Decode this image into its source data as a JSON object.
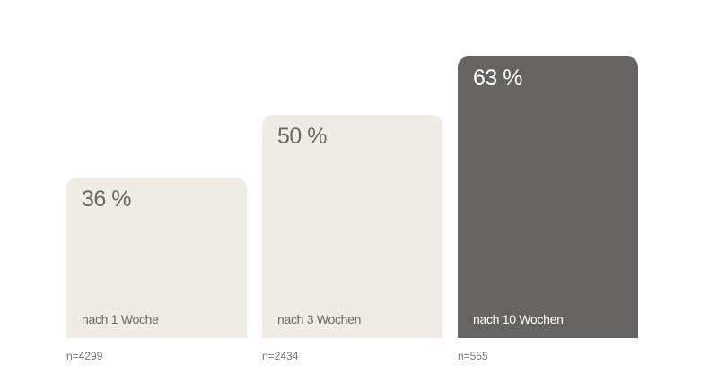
{
  "chart_data": {
    "type": "bar",
    "categories": [
      "nach 1 Woche",
      "nach 3 Wochen",
      "nach 10 Wochen"
    ],
    "values": [
      36,
      50,
      63
    ],
    "value_labels": [
      "36 %",
      "50 %",
      "63 %"
    ],
    "sample_sizes": [
      "n=4299",
      "n=2434",
      "n=555"
    ],
    "ylim": [
      0,
      63
    ],
    "grid": false,
    "colors": {
      "default": "#efece6",
      "highlight": "#656463",
      "text_default": "#6b6866",
      "text_highlight": "#ffffff"
    },
    "highlight_index": 2
  }
}
